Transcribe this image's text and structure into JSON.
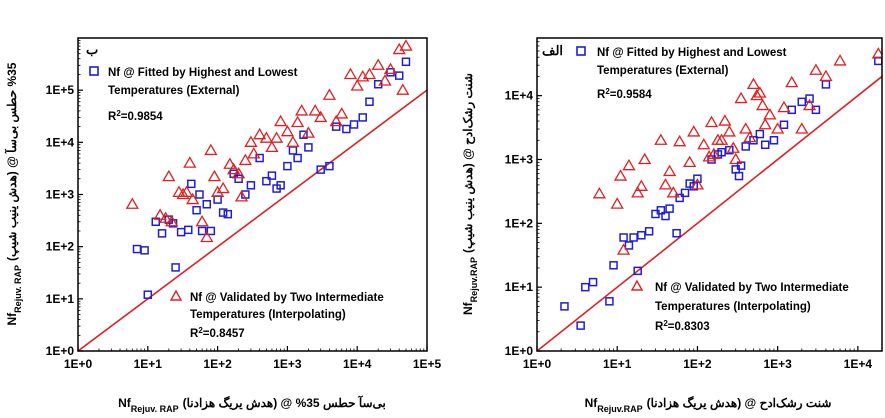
{
  "chart_data": [
    {
      "type": "scatter",
      "panel_label": "ب",
      "log_scale": true,
      "xlim": [
        1,
        100000
      ],
      "ylim": [
        1,
        1000000
      ],
      "x_ticks": [
        1,
        10,
        100,
        1000,
        10000,
        100000
      ],
      "x_tick_labels": [
        "1E+0",
        "1E+1",
        "1E+2",
        "1E+3",
        "1E+4",
        "1E+5"
      ],
      "y_ticks": [
        1,
        10,
        100,
        1000,
        10000,
        100000
      ],
      "y_tick_labels": [
        "1E+0",
        "1E+1",
        "1E+2",
        "1E+3",
        "1E+4",
        "1E+5"
      ],
      "xlabel_main": "Nf",
      "xlabel_sub": "Rejuv. RAP",
      "xlabel_rest": "بی‌سآ حطس 35% @ (هدش یریگ هزادنا)",
      "ylabel_main": "Nf",
      "ylabel_sub": "Rejuv. RAP",
      "ylabel_rest": "(هدش ینیب شیپ) @ 35% حطس بی‌سآ",
      "grid": false,
      "reference_line": "y = x",
      "series": [
        {
          "name": "Nf @ Fitted by Highest and Lowest Temperatures (External)",
          "legend_line1": "Nf @ Fitted by Highest and Lowest",
          "legend_line2": "Temperatures (External)",
          "r2_label": "R",
          "r2_sup": "2",
          "r2_value": "=0.9854",
          "marker": "square",
          "color": "#1f1fd0",
          "points": [
            [
              7,
              90
            ],
            [
              9,
              85
            ],
            [
              10,
              12
            ],
            [
              13,
              300
            ],
            [
              16,
              180
            ],
            [
              20,
              330
            ],
            [
              23,
              280
            ],
            [
              25,
              40
            ],
            [
              30,
              190
            ],
            [
              38,
              210
            ],
            [
              42,
              1600
            ],
            [
              50,
              500
            ],
            [
              55,
              1000
            ],
            [
              60,
              200
            ],
            [
              70,
              650
            ],
            [
              80,
              200
            ],
            [
              100,
              800
            ],
            [
              120,
              450
            ],
            [
              140,
              420
            ],
            [
              170,
              2500
            ],
            [
              200,
              2000
            ],
            [
              250,
              1000
            ],
            [
              300,
              1500
            ],
            [
              400,
              5000
            ],
            [
              500,
              1800
            ],
            [
              600,
              2300
            ],
            [
              700,
              1300
            ],
            [
              800,
              1500
            ],
            [
              1000,
              3500
            ],
            [
              1200,
              7000
            ],
            [
              1400,
              5000
            ],
            [
              1700,
              14000
            ],
            [
              2000,
              8000
            ],
            [
              3000,
              3000
            ],
            [
              4000,
              3500
            ],
            [
              5000,
              20000
            ],
            [
              7000,
              18000
            ],
            [
              9000,
              22000
            ],
            [
              12000,
              30000
            ],
            [
              15000,
              60000
            ],
            [
              20000,
              130000
            ],
            [
              30000,
              220000
            ],
            [
              40000,
              190000
            ],
            [
              50000,
              350000
            ]
          ]
        },
        {
          "name": "Nf @ Validated by Two Intermediate Temperatures (Interpolating)",
          "legend_line1": "Nf @ Validated by Two Intermediate",
          "legend_line2": "Temperatures (Interpolating)",
          "r2_label": "R",
          "r2_sup": "2",
          "r2_value": "=0.8457",
          "marker": "triangle",
          "color": "#e02020",
          "points": [
            [
              6,
              650
            ],
            [
              15,
              400
            ],
            [
              18,
              350
            ],
            [
              20,
              2200
            ],
            [
              22,
              300
            ],
            [
              28,
              1100
            ],
            [
              32,
              1000
            ],
            [
              36,
              1100
            ],
            [
              40,
              4000
            ],
            [
              44,
              800
            ],
            [
              60,
              300
            ],
            [
              70,
              150
            ],
            [
              80,
              7000
            ],
            [
              90,
              2200
            ],
            [
              100,
              1100
            ],
            [
              120,
              1300
            ],
            [
              150,
              3800
            ],
            [
              170,
              3000
            ],
            [
              200,
              2500
            ],
            [
              220,
              900
            ],
            [
              250,
              4500
            ],
            [
              300,
              10000
            ],
            [
              330,
              6000
            ],
            [
              400,
              14000
            ],
            [
              500,
              12000
            ],
            [
              600,
              8000
            ],
            [
              700,
              12000
            ],
            [
              800,
              25000
            ],
            [
              1000,
              16000
            ],
            [
              1200,
              10000
            ],
            [
              1400,
              24000
            ],
            [
              1600,
              40000
            ],
            [
              2000,
              15000
            ],
            [
              2500,
              40000
            ],
            [
              3000,
              30000
            ],
            [
              4000,
              80000
            ],
            [
              5000,
              25000
            ],
            [
              6000,
              35000
            ],
            [
              8000,
              200000
            ],
            [
              10000,
              120000
            ],
            [
              12000,
              180000
            ],
            [
              15000,
              200000
            ],
            [
              20000,
              300000
            ],
            [
              25000,
              150000
            ],
            [
              30000,
              250000
            ],
            [
              40000,
              600000
            ],
            [
              45000,
              100000
            ],
            [
              50000,
              700000
            ]
          ]
        }
      ]
    },
    {
      "type": "scatter",
      "panel_label": "الف",
      "log_scale": true,
      "xlim": [
        1,
        20000
      ],
      "ylim": [
        1,
        80000
      ],
      "x_ticks": [
        1,
        10,
        100,
        1000,
        10000
      ],
      "x_tick_labels": [
        "1E+0",
        "1E+1",
        "1E+2",
        "1E+3",
        "1E+4"
      ],
      "y_ticks": [
        1,
        10,
        100,
        1000,
        10000
      ],
      "y_tick_labels": [
        "1E+0",
        "1E+1",
        "1E+2",
        "1E+3",
        "1E+4"
      ],
      "xlabel_main": "Nf",
      "xlabel_sub": "Rejuv.RAP",
      "xlabel_rest": "شنت رشک‌ادح @ (هدش یریگ هزادنا)",
      "ylabel_main": "Nf",
      "ylabel_sub": "Rejuv.RAP",
      "ylabel_rest": "(هدش ینیب شیپ) @ شنت رشک‌ادح",
      "grid": false,
      "reference_line": "y = x",
      "series": [
        {
          "name": "Nf @ Fitted by Highest and Lowest Temperatures (External)",
          "legend_line1": "Nf @ Fitted by Highest and Lowest",
          "legend_line2": "Temperatures (External)",
          "r2_label": "R",
          "r2_sup": "2",
          "r2_value": "=0.9584",
          "marker": "square",
          "color": "#1f1fd0",
          "points": [
            [
              2.2,
              5
            ],
            [
              3.5,
              2.5
            ],
            [
              4,
              10
            ],
            [
              5,
              12
            ],
            [
              8,
              6
            ],
            [
              9,
              22
            ],
            [
              12,
              60
            ],
            [
              14,
              45
            ],
            [
              16,
              60
            ],
            [
              18,
              18
            ],
            [
              20,
              65
            ],
            [
              25,
              75
            ],
            [
              30,
              140
            ],
            [
              35,
              160
            ],
            [
              40,
              130
            ],
            [
              45,
              170
            ],
            [
              55,
              70
            ],
            [
              60,
              250
            ],
            [
              70,
              300
            ],
            [
              80,
              420
            ],
            [
              90,
              380
            ],
            [
              100,
              500
            ],
            [
              150,
              1000
            ],
            [
              180,
              1200
            ],
            [
              200,
              1300
            ],
            [
              250,
              1400
            ],
            [
              300,
              700
            ],
            [
              330,
              550
            ],
            [
              350,
              800
            ],
            [
              400,
              1600
            ],
            [
              500,
              2000
            ],
            [
              600,
              2500
            ],
            [
              700,
              1700
            ],
            [
              900,
              2000
            ],
            [
              1200,
              3500
            ],
            [
              1500,
              6000
            ],
            [
              2000,
              8000
            ],
            [
              2500,
              9000
            ],
            [
              3000,
              6000
            ],
            [
              4000,
              15000
            ],
            [
              18000,
              35000
            ]
          ]
        },
        {
          "name": "Nf @ Validated by Two Intermediate Temperatures (Interpolating)",
          "legend_line1": "Nf @ Validated by Two Intermediate",
          "legend_line2": "Temperatures (Interpolating)",
          "r2_label": "R",
          "r2_sup": "2",
          "r2_value": "=0.8303",
          "marker": "triangle",
          "color": "#e02020",
          "points": [
            [
              6,
              290
            ],
            [
              10,
              200
            ],
            [
              11,
              550
            ],
            [
              12,
              38
            ],
            [
              14,
              800
            ],
            [
              18,
              300
            ],
            [
              20,
              380
            ],
            [
              22,
              1000
            ],
            [
              35,
              2000
            ],
            [
              40,
              400
            ],
            [
              45,
              650
            ],
            [
              50,
              300
            ],
            [
              60,
              1900
            ],
            [
              80,
              900
            ],
            [
              90,
              2700
            ],
            [
              100,
              400
            ],
            [
              120,
              1700
            ],
            [
              140,
              1100
            ],
            [
              150,
              3800
            ],
            [
              160,
              1200
            ],
            [
              180,
              2000
            ],
            [
              200,
              2000
            ],
            [
              220,
              4000
            ],
            [
              250,
              2700
            ],
            [
              280,
              1500
            ],
            [
              300,
              1000
            ],
            [
              350,
              9000
            ],
            [
              400,
              3000
            ],
            [
              450,
              2200
            ],
            [
              500,
              15000
            ],
            [
              550,
              10000
            ],
            [
              600,
              11000
            ],
            [
              650,
              7000
            ],
            [
              700,
              3500
            ],
            [
              800,
              5000
            ],
            [
              1000,
              3000
            ],
            [
              1200,
              6500
            ],
            [
              1500,
              16000
            ],
            [
              2000,
              3000
            ],
            [
              2500,
              7000
            ],
            [
              3000,
              25000
            ],
            [
              4000,
              20000
            ],
            [
              6000,
              35000
            ],
            [
              18000,
              45000
            ]
          ]
        }
      ]
    }
  ]
}
